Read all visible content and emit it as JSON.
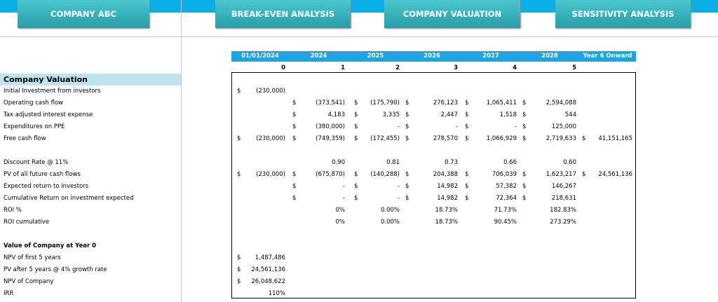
{
  "tabs": [
    "COMPANY ABC",
    "BREAK-EVEN ANALYSIS",
    "COMPANY VALUATION",
    "SENSITIVITY ANALYSIS"
  ],
  "columns": {
    "dates": [
      "01/01/2024",
      "2024",
      "2025",
      "2026",
      "2027",
      "2028",
      "Year 6 Onward"
    ],
    "periods": [
      "0",
      "1",
      "2",
      "3",
      "4",
      "5"
    ]
  },
  "section_title": "Company Valuation",
  "groups": [
    {
      "rows": [
        {
          "label": "Initial Investment from investors",
          "cells": [
            {
              "sign": "$",
              "value": "(230,000)"
            },
            null,
            null,
            null,
            null,
            null,
            null
          ]
        },
        {
          "label": "Operating cash flow",
          "cells": [
            null,
            {
              "sign": "$",
              "value": "(373,541)"
            },
            {
              "sign": "$",
              "value": "(175,790)"
            },
            {
              "sign": "$",
              "value": "276,123"
            },
            {
              "sign": "$",
              "value": "1,065,411"
            },
            {
              "sign": "$",
              "value": "2,594,088"
            },
            null
          ]
        },
        {
          "label": "Tax adjusted interest expense",
          "cells": [
            null,
            {
              "sign": "$",
              "value": "4,183"
            },
            {
              "sign": "$",
              "value": "3,335"
            },
            {
              "sign": "$",
              "value": "2,447"
            },
            {
              "sign": "$",
              "value": "1,518"
            },
            {
              "sign": "$",
              "value": "544"
            },
            null
          ]
        },
        {
          "label": "Expenditures on PPE",
          "cells": [
            null,
            {
              "sign": "$",
              "value": "(380,000)"
            },
            {
              "sign": "$",
              "value": "-"
            },
            {
              "sign": "$",
              "value": "-"
            },
            {
              "sign": "$",
              "value": "-"
            },
            {
              "sign": "$",
              "value": "125,000"
            },
            null
          ]
        },
        {
          "label": "Free cash flow",
          "cells": [
            {
              "sign": "$",
              "value": "(230,000)"
            },
            {
              "sign": "$",
              "value": "(749,359)"
            },
            {
              "sign": "$",
              "value": "(172,455)"
            },
            {
              "sign": "$",
              "value": "278,570"
            },
            {
              "sign": "$",
              "value": "1,066,929"
            },
            {
              "sign": "$",
              "value": "2,719,633"
            },
            {
              "sign": "$",
              "value": "41,151,165"
            }
          ]
        }
      ]
    },
    {
      "rows": [
        {
          "label": "Discount Rate @ 11%",
          "cells": [
            null,
            {
              "value": "0.90"
            },
            {
              "value": "0.81"
            },
            {
              "value": "0.73"
            },
            {
              "value": "0.66"
            },
            {
              "value": "0.60"
            },
            null
          ]
        },
        {
          "label": "PV of all future cash flows",
          "cells": [
            {
              "sign": "$",
              "value": "(230,000)"
            },
            {
              "sign": "$",
              "value": "(675,870)"
            },
            {
              "sign": "$",
              "value": "(140,288)"
            },
            {
              "sign": "$",
              "value": "204,388"
            },
            {
              "sign": "$",
              "value": "706,039"
            },
            {
              "sign": "$",
              "value": "1,623,217"
            },
            {
              "sign": "$",
              "value": "24,561,136"
            }
          ]
        },
        {
          "label": "Expected return to investors",
          "cells": [
            null,
            {
              "sign": "$",
              "value": "-"
            },
            {
              "sign": "$",
              "value": "-"
            },
            {
              "sign": "$",
              "value": "14,982"
            },
            {
              "sign": "$",
              "value": "57,382"
            },
            {
              "sign": "$",
              "value": "146,267"
            },
            null
          ]
        },
        {
          "label": "Cumulative Return on investment expected",
          "cells": [
            null,
            {
              "sign": "$",
              "value": "-"
            },
            {
              "sign": "$",
              "value": "-"
            },
            {
              "sign": "$",
              "value": "14,982"
            },
            {
              "sign": "$",
              "value": "72,364"
            },
            {
              "sign": "$",
              "value": "218,631"
            },
            null
          ]
        },
        {
          "label": "ROI %",
          "cells": [
            null,
            {
              "value": "0%"
            },
            {
              "value": "0.00%"
            },
            {
              "value": "18.73%"
            },
            {
              "value": "71.73%"
            },
            {
              "value": "182.83%"
            },
            null
          ]
        },
        {
          "label": "ROI cumulative",
          "cells": [
            null,
            {
              "value": "0%"
            },
            {
              "value": "0.00%"
            },
            {
              "value": "18.73%"
            },
            {
              "value": "90.45%"
            },
            {
              "value": "273.29%"
            },
            null
          ]
        }
      ]
    },
    {
      "title": "Value of Company at Year 0",
      "rows": [
        {
          "label": "NPV of first 5 years",
          "cells": [
            {
              "sign": "$",
              "value": "1,487,486"
            },
            null,
            null,
            null,
            null,
            null,
            null
          ]
        },
        {
          "label": "PV after 5 years @ 4% growth rate",
          "cells": [
            {
              "sign": "$",
              "value": "24,561,136"
            },
            null,
            null,
            null,
            null,
            null,
            null
          ]
        },
        {
          "label": "NPV of Company",
          "cells": [
            {
              "sign": "$",
              "value": "26,048,622"
            },
            null,
            null,
            null,
            null,
            null,
            null
          ]
        },
        {
          "label": "IRR",
          "cells": [
            {
              "value": "110%"
            },
            null,
            null,
            null,
            null,
            null,
            null
          ]
        }
      ]
    }
  ]
}
